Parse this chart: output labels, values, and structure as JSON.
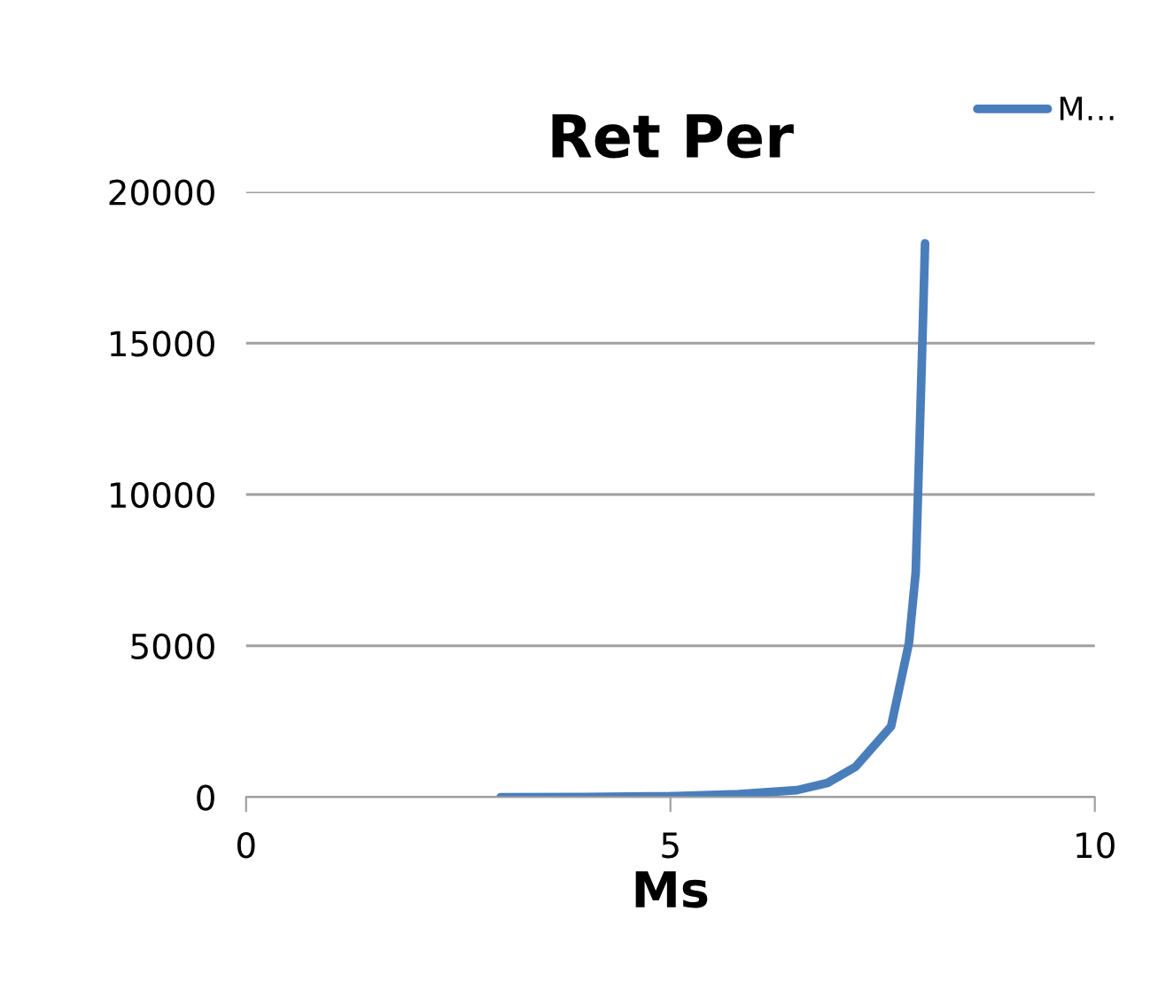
{
  "chart_data": {
    "type": "line",
    "title": "Ret Per",
    "xlabel": "Ms",
    "series": [
      {
        "name": "M…",
        "color": "#4a7ebb",
        "x": [
          3,
          4,
          5,
          5.8,
          6.49,
          6.85,
          7.18,
          7.6,
          7.81,
          7.89,
          7.93,
          7.97,
          8.0
        ],
        "values": [
          0,
          5,
          30,
          100,
          230,
          470,
          1000,
          2340,
          5090,
          7430,
          11300,
          15200,
          18300
        ]
      }
    ],
    "xlim": [
      0,
      10
    ],
    "xticks": [
      0,
      5,
      10
    ],
    "ylim": [
      0,
      20000
    ],
    "yticks": [
      0,
      5000,
      10000,
      15000,
      20000
    ],
    "grid": "y",
    "legend": "top right",
    "marker": "none",
    "line_style": "solid"
  }
}
